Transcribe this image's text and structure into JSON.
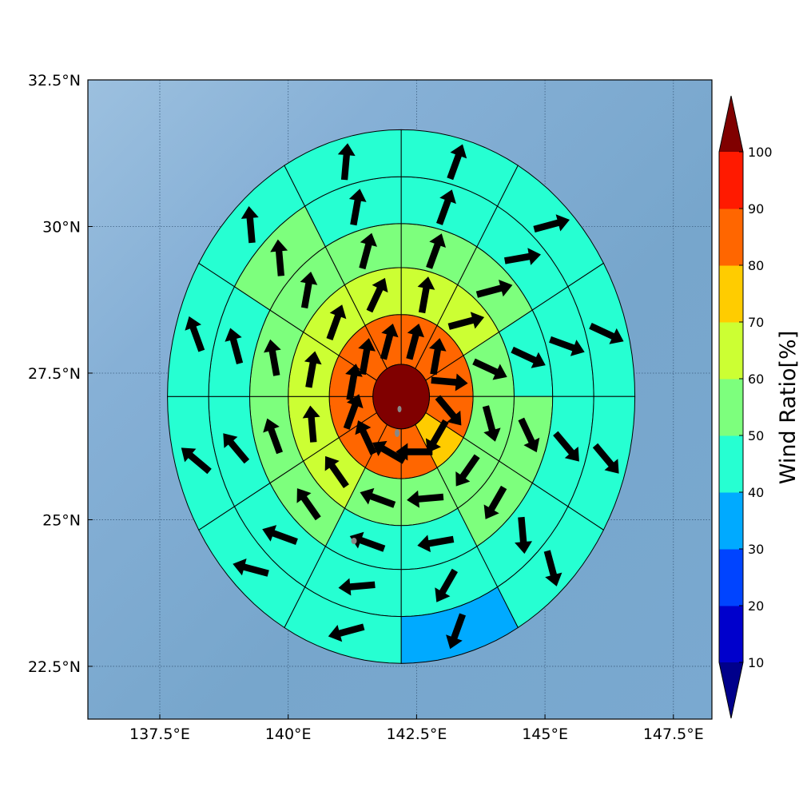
{
  "chart_data": {
    "type": "polar_grid_map",
    "map": {
      "lon_range": [
        136.1,
        148.25
      ],
      "lat_range": [
        21.6,
        32.5
      ],
      "x_ticks": [
        137.5,
        140,
        142.5,
        145,
        147.5
      ],
      "x_tick_labels": [
        "137.5°E",
        "140°E",
        "142.5°E",
        "145°E",
        "147.5°E"
      ],
      "y_ticks": [
        32.5,
        30,
        27.5,
        25,
        22.5
      ],
      "y_tick_labels": [
        "32.5°N",
        "30°N",
        "27.5°N",
        "25°N",
        "22.5°N"
      ],
      "gridlines": true,
      "ocean_color": "#7aa8cf"
    },
    "center": {
      "lon": 142.2,
      "lat": 27.1,
      "value": 100
    },
    "ring_edges_deg": [
      0.55,
      1.4,
      2.2,
      2.95,
      3.75,
      4.55
    ],
    "sector_starts_deg": [
      0,
      30,
      60,
      90,
      120,
      150,
      180,
      210,
      240,
      270,
      300,
      330
    ],
    "rings": [
      {
        "ring": 1,
        "values": [
          85,
          85,
          85,
          85,
          75,
          85,
          85,
          85,
          85,
          85,
          85,
          85
        ],
        "wind_dir_deg": [
          15,
          10,
          95,
          140,
          210,
          270,
          300,
          335,
          20,
          10,
          10,
          15
        ]
      },
      {
        "ring": 2,
        "values": [
          65,
          65,
          55,
          55,
          55,
          55,
          55,
          65,
          65,
          65,
          65,
          65
        ],
        "wind_dir_deg": [
          10,
          75,
          115,
          165,
          215,
          265,
          290,
          325,
          355,
          10,
          20,
          25
        ]
      },
      {
        "ring": 3,
        "values": [
          55,
          55,
          45,
          55,
          55,
          45,
          45,
          55,
          55,
          55,
          55,
          55
        ],
        "wind_dir_deg": [
          20,
          75,
          115,
          155,
          210,
          260,
          290,
          325,
          340,
          350,
          10,
          15
        ]
      },
      {
        "ring": 4,
        "values": [
          45,
          45,
          45,
          45,
          45,
          45,
          45,
          45,
          45,
          45,
          55,
          45
        ],
        "wind_dir_deg": [
          20,
          80,
          110,
          140,
          175,
          210,
          265,
          290,
          320,
          345,
          355,
          10
        ]
      },
      {
        "ring": 5,
        "values": [
          45,
          45,
          45,
          45,
          45,
          35,
          45,
          45,
          45,
          45,
          45,
          45
        ],
        "wind_dir_deg": [
          20,
          75,
          115,
          140,
          165,
          200,
          255,
          285,
          310,
          340,
          355,
          5
        ]
      },
      {
        "ring": 6,
        "values": [
          45,
          45,
          35,
          35,
          45,
          35,
          35,
          45,
          45,
          45,
          45,
          45
        ],
        "wind_dir_deg": [
          20,
          75,
          115,
          150,
          165,
          200,
          255,
          285,
          310,
          340,
          350,
          5
        ]
      }
    ],
    "colorbar": {
      "label": "Wind Ratio[%]",
      "ticks": [
        10,
        20,
        30,
        40,
        50,
        60,
        70,
        80,
        90,
        100
      ],
      "tick_labels": [
        "10",
        "20",
        "30",
        "40",
        "50",
        "60",
        "70",
        "80",
        "90",
        "100"
      ],
      "colors": [
        "#0000cc",
        "#0044ff",
        "#00aaff",
        "#26ffd2",
        "#7dff7d",
        "#ccff33",
        "#ffcc00",
        "#ff6600",
        "#ff1a00"
      ],
      "under_color": "#00008b",
      "over_color": "#800000",
      "extend": "both"
    }
  }
}
